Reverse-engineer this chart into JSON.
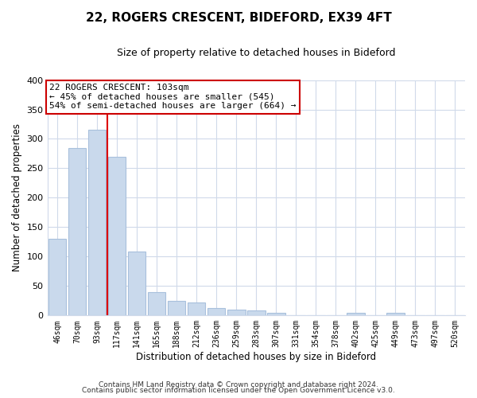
{
  "title": "22, ROGERS CRESCENT, BIDEFORD, EX39 4FT",
  "subtitle": "Size of property relative to detached houses in Bideford",
  "xlabel": "Distribution of detached houses by size in Bideford",
  "ylabel": "Number of detached properties",
  "bar_labels": [
    "46sqm",
    "70sqm",
    "93sqm",
    "117sqm",
    "141sqm",
    "165sqm",
    "188sqm",
    "212sqm",
    "236sqm",
    "259sqm",
    "283sqm",
    "307sqm",
    "331sqm",
    "354sqm",
    "378sqm",
    "402sqm",
    "425sqm",
    "449sqm",
    "473sqm",
    "497sqm",
    "520sqm"
  ],
  "bar_values": [
    130,
    285,
    315,
    270,
    108,
    40,
    25,
    22,
    13,
    10,
    9,
    5,
    0,
    0,
    0,
    4,
    0,
    5,
    0,
    0,
    0
  ],
  "bar_color": "#c9d9ec",
  "bar_edge_color": "#a8c0dc",
  "vline_x": 2.5,
  "vline_color": "#dd0000",
  "ylim": [
    0,
    400
  ],
  "yticks": [
    0,
    50,
    100,
    150,
    200,
    250,
    300,
    350,
    400
  ],
  "annotation_title": "22 ROGERS CRESCENT: 103sqm",
  "annotation_line1": "← 45% of detached houses are smaller (545)",
  "annotation_line2": "54% of semi-detached houses are larger (664) →",
  "footer1": "Contains HM Land Registry data © Crown copyright and database right 2024.",
  "footer2": "Contains public sector information licensed under the Open Government Licence v3.0.",
  "bg_color": "#ffffff",
  "grid_color": "#d0daea"
}
